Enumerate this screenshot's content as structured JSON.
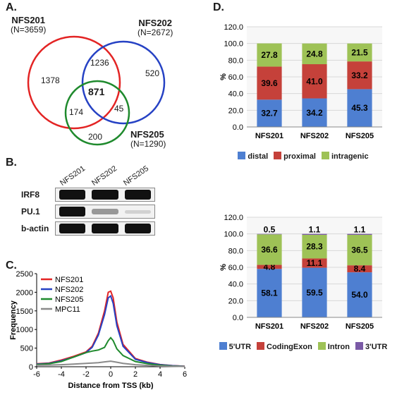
{
  "panels": {
    "A": "A.",
    "B": "B.",
    "C": "C.",
    "D": "D."
  },
  "venn": {
    "sets": {
      "NFS201": {
        "label": "NFS201",
        "n": "(N=3659)",
        "ring_color": "#e32424"
      },
      "NFS202": {
        "label": "NFS202",
        "n": "(N=2672)",
        "ring_color": "#2642c4"
      },
      "NFS205": {
        "label": "NFS205",
        "n": "(N=1290)",
        "ring_color": "#1f8a2d"
      }
    },
    "regions": {
      "only201": "1378",
      "only202": "520",
      "only205": "200",
      "r201_202": "1236",
      "r201_205": "174",
      "r202_205": "45",
      "all": "871"
    },
    "ring_stroke_width": 2.5
  },
  "blot": {
    "columns": [
      "NFS201",
      "NFS202",
      "NFS205"
    ],
    "rows": [
      {
        "name": "IRF8",
        "intensity": [
          10,
          10,
          10
        ]
      },
      {
        "name": "PU.1",
        "intensity": [
          10,
          4,
          1
        ]
      },
      {
        "name": "b-actin",
        "intensity": [
          10,
          10,
          10
        ]
      }
    ],
    "band_color": "#111111",
    "lane_bg": "#f2f2f2"
  },
  "linechart": {
    "xlabel": "Distance from TSS (kb)",
    "ylabel": "Frequency",
    "xlim": [
      -6,
      6
    ],
    "xtick_step": 2,
    "ylim": [
      0,
      2500
    ],
    "ytick_step": 500,
    "background": "#ffffff",
    "axis_color": "#000000",
    "grid": false,
    "line_width": 2,
    "series": [
      {
        "name": "NFS201",
        "color": "#e32424",
        "points": [
          [
            -6,
            80
          ],
          [
            -5,
            100
          ],
          [
            -4,
            180
          ],
          [
            -3,
            280
          ],
          [
            -2,
            400
          ],
          [
            -1.5,
            550
          ],
          [
            -1,
            900
          ],
          [
            -0.5,
            1500
          ],
          [
            -0.2,
            2000
          ],
          [
            0,
            2030
          ],
          [
            0.2,
            1850
          ],
          [
            0.5,
            1200
          ],
          [
            1,
            600
          ],
          [
            2,
            220
          ],
          [
            3,
            120
          ],
          [
            4,
            60
          ],
          [
            5,
            30
          ],
          [
            6,
            15
          ]
        ]
      },
      {
        "name": "NFS202",
        "color": "#2642c4",
        "points": [
          [
            -6,
            70
          ],
          [
            -5,
            90
          ],
          [
            -4,
            160
          ],
          [
            -3,
            260
          ],
          [
            -2,
            380
          ],
          [
            -1.5,
            520
          ],
          [
            -1,
            850
          ],
          [
            -0.5,
            1400
          ],
          [
            -0.2,
            1850
          ],
          [
            0,
            1900
          ],
          [
            0.2,
            1700
          ],
          [
            0.5,
            1100
          ],
          [
            1,
            550
          ],
          [
            2,
            200
          ],
          [
            3,
            110
          ],
          [
            4,
            55
          ],
          [
            5,
            28
          ],
          [
            6,
            12
          ]
        ]
      },
      {
        "name": "NFS205",
        "color": "#1f8a2d",
        "points": [
          [
            -6,
            60
          ],
          [
            -5,
            80
          ],
          [
            -4,
            140
          ],
          [
            -3,
            260
          ],
          [
            -2,
            380
          ],
          [
            -1.5,
            420
          ],
          [
            -1,
            450
          ],
          [
            -0.5,
            520
          ],
          [
            -0.2,
            700
          ],
          [
            0,
            780
          ],
          [
            0.2,
            700
          ],
          [
            0.5,
            480
          ],
          [
            1,
            300
          ],
          [
            2,
            140
          ],
          [
            3,
            80
          ],
          [
            4,
            40
          ],
          [
            5,
            20
          ],
          [
            6,
            10
          ]
        ]
      },
      {
        "name": "MPC11",
        "color": "#8a8a8a",
        "points": [
          [
            -6,
            40
          ],
          [
            -5,
            45
          ],
          [
            -4,
            55
          ],
          [
            -3,
            70
          ],
          [
            -2,
            90
          ],
          [
            -1,
            110
          ],
          [
            -0.5,
            130
          ],
          [
            0,
            150
          ],
          [
            0.5,
            120
          ],
          [
            1,
            90
          ],
          [
            2,
            55
          ],
          [
            3,
            35
          ],
          [
            4,
            20
          ],
          [
            5,
            12
          ],
          [
            6,
            8
          ]
        ]
      }
    ],
    "legend_pos": "upper-left",
    "legend_fontsize": 11
  },
  "stacked": {
    "categories_label": [
      "NFS201",
      "NFS202",
      "NFS205"
    ],
    "ylabel": "%",
    "ylim": [
      0,
      120
    ],
    "ytick_step": 20,
    "bar_width": 0.55,
    "colors": {
      "blue": "#4e7fd1",
      "red": "#c5413a",
      "green": "#9ec256",
      "purple": "#7a5aa6"
    },
    "top": {
      "legend": [
        {
          "key": "blue",
          "label": "distal"
        },
        {
          "key": "red",
          "label": "proximal"
        },
        {
          "key": "green",
          "label": "intragenic"
        }
      ],
      "data": [
        {
          "cat": "NFS201",
          "segments": [
            {
              "key": "blue",
              "v": 32.7
            },
            {
              "key": "red",
              "v": 39.6
            },
            {
              "key": "green",
              "v": 27.8
            }
          ]
        },
        {
          "cat": "NFS202",
          "segments": [
            {
              "key": "blue",
              "v": 34.2
            },
            {
              "key": "red",
              "v": 41.0
            },
            {
              "key": "green",
              "v": 24.8
            }
          ]
        },
        {
          "cat": "NFS205",
          "segments": [
            {
              "key": "blue",
              "v": 45.3
            },
            {
              "key": "red",
              "v": 33.2
            },
            {
              "key": "green",
              "v": 21.5
            }
          ]
        }
      ]
    },
    "bottom": {
      "legend": [
        {
          "key": "blue",
          "label": "5'UTR"
        },
        {
          "key": "red",
          "label": "CodingExon"
        },
        {
          "key": "green",
          "label": "Intron"
        },
        {
          "key": "purple",
          "label": "3'UTR"
        }
      ],
      "data": [
        {
          "cat": "NFS201",
          "segments": [
            {
              "key": "blue",
              "v": 58.1
            },
            {
              "key": "red",
              "v": 4.8
            },
            {
              "key": "green",
              "v": 36.6
            },
            {
              "key": "purple",
              "v": 0.5
            }
          ]
        },
        {
          "cat": "NFS202",
          "segments": [
            {
              "key": "blue",
              "v": 59.5
            },
            {
              "key": "red",
              "v": 11.1
            },
            {
              "key": "green",
              "v": 28.3
            },
            {
              "key": "purple",
              "v": 1.1
            }
          ]
        },
        {
          "cat": "NFS205",
          "segments": [
            {
              "key": "blue",
              "v": 54.0
            },
            {
              "key": "red",
              "v": 8.4
            },
            {
              "key": "green",
              "v": 36.5
            },
            {
              "key": "purple",
              "v": 1.1
            }
          ]
        }
      ]
    }
  }
}
